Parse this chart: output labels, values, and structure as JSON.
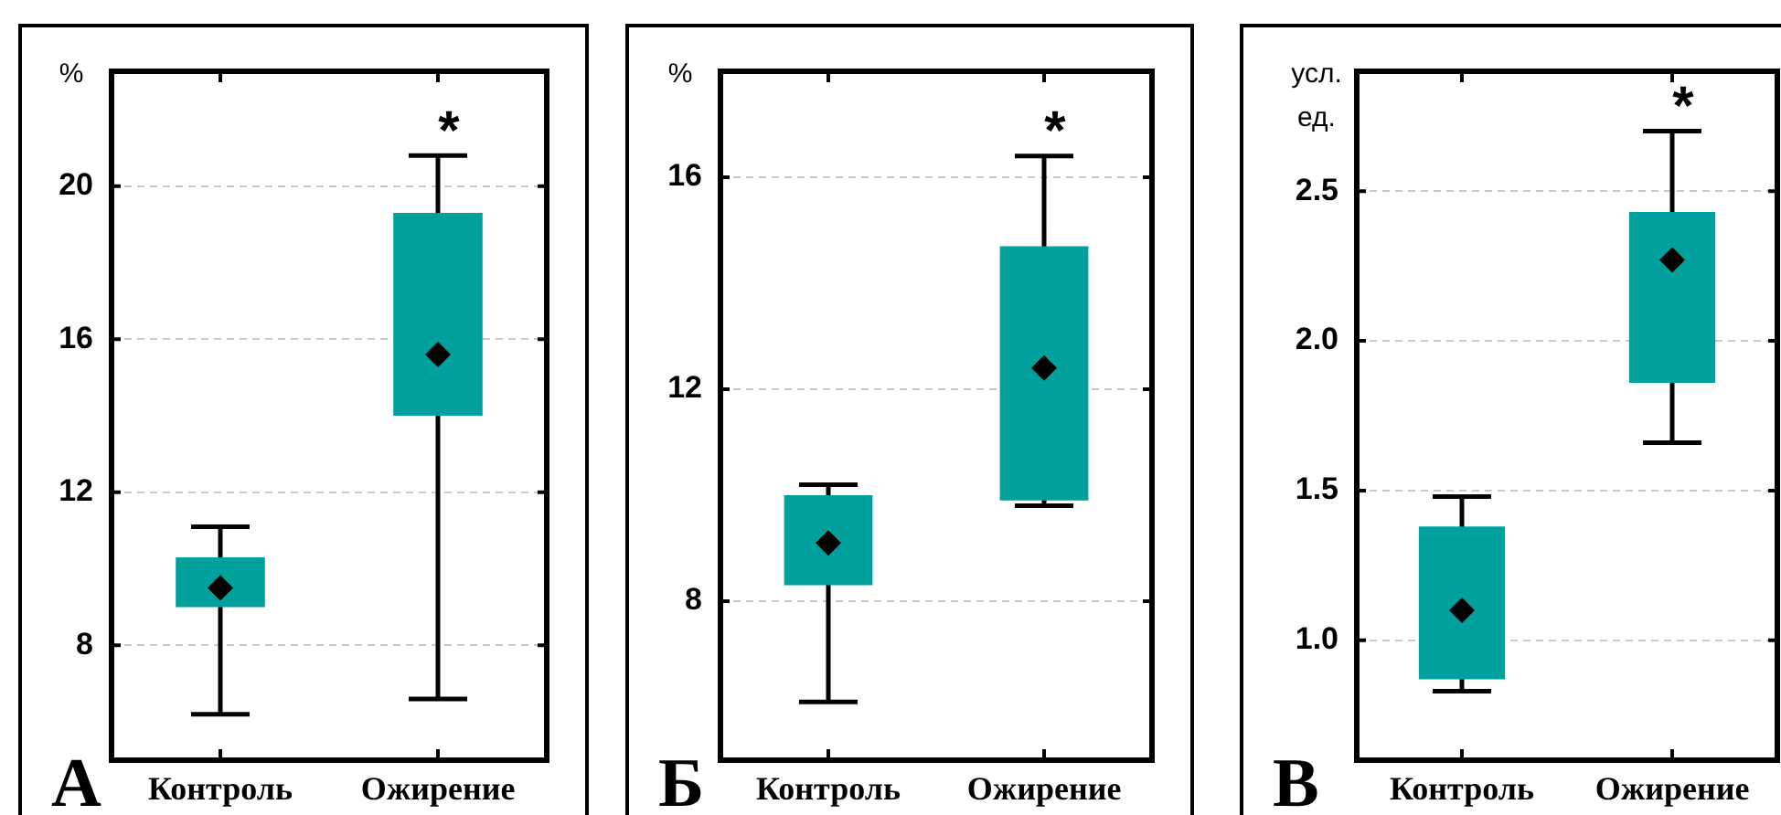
{
  "chart_data": [
    {
      "type": "box",
      "title": "А",
      "ylabel": "%",
      "categories": [
        "Контроль",
        "Ожирение"
      ],
      "color": "#00a19d",
      "boxes": [
        {
          "low": 6.2,
          "q1": 9.0,
          "median": 9.5,
          "q3": 10.3,
          "high": 11.1
        },
        {
          "low": 6.6,
          "q1": 14.0,
          "median": 15.6,
          "q3": 19.3,
          "high": 20.8
        }
      ],
      "ylim": [
        5,
        23
      ],
      "yticks": [
        8,
        12,
        16,
        20
      ],
      "grid": "y",
      "annotations": [
        "*"
      ]
    },
    {
      "type": "box",
      "title": "Б",
      "ylabel": "%",
      "categories": [
        "Контроль",
        "Ожирение"
      ],
      "color": "#00a19d",
      "boxes": [
        {
          "low": 6.1,
          "q1": 8.3,
          "median": 9.1,
          "q3": 10.0,
          "high": 10.2
        },
        {
          "low": 9.8,
          "q1": 9.9,
          "median": 12.4,
          "q3": 14.7,
          "high": 16.4
        }
      ],
      "ylim": [
        5,
        18
      ],
      "yticks": [
        8,
        12,
        16
      ],
      "grid": "y",
      "annotations": [
        "*"
      ]
    },
    {
      "type": "box",
      "title": "В",
      "ylabel": "усл. ед.",
      "categories": [
        "Контроль",
        "Ожирение"
      ],
      "color": "#00a19d",
      "boxes": [
        {
          "low": 0.83,
          "q1": 0.87,
          "median": 1.1,
          "q3": 1.38,
          "high": 1.48
        },
        {
          "low": 1.66,
          "q1": 1.86,
          "median": 2.27,
          "q3": 2.43,
          "high": 2.7
        }
      ],
      "ylim": [
        0.6,
        2.9
      ],
      "yticks": [
        {
          "value": 1,
          "label": "1.0"
        },
        1.5,
        {
          "value": 2,
          "label": "2.0"
        },
        2.5
      ],
      "grid": "y",
      "annotations": [
        "*"
      ]
    }
  ]
}
